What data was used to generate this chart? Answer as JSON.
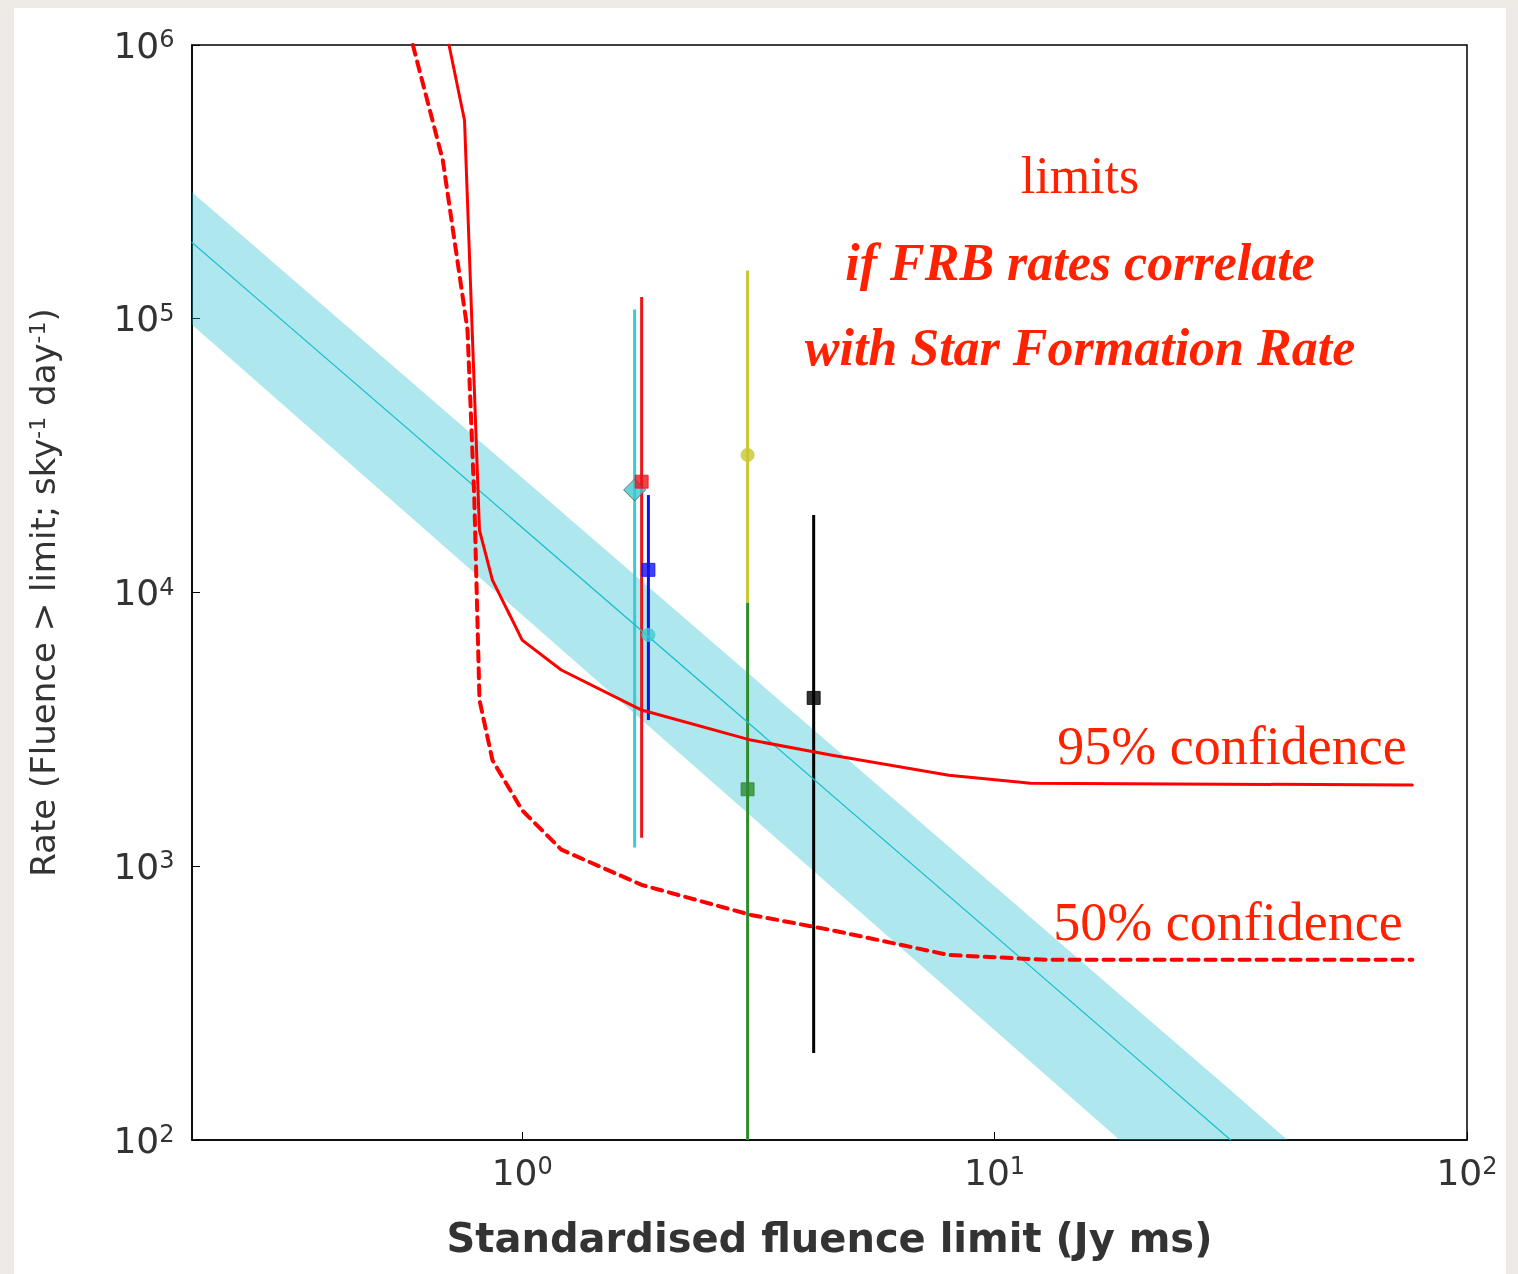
{
  "chart_data": {
    "type": "line",
    "xlabel": "Standardised fluence limit (Jy ms)",
    "ylabel": "Rate (Fluence > limit; sky$^{-1}$ day$^{-1}$)",
    "log": "xy",
    "xlim": [
      0.2,
      100
    ],
    "ylim": [
      100,
      1000000
    ],
    "xticks": [
      {
        "value": 1,
        "label": "10$^{0}$"
      },
      {
        "value": 10,
        "label": "10$^{1}$"
      },
      {
        "value": 100,
        "label": "10$^{2}$"
      }
    ],
    "yticks": [
      {
        "value": 100,
        "label": "10$^{2}$"
      },
      {
        "value": 1000,
        "label": "10$^{3}$"
      },
      {
        "value": 10000,
        "label": "10$^{4}$"
      },
      {
        "value": 100000,
        "label": "10$^{5}$"
      },
      {
        "value": 1000000,
        "label": "10$^{6}$"
      }
    ],
    "annotations": [
      "limits",
      "if FRB rates correlate",
      "with Star Formation Rate",
      "95% confidence",
      "50% confidence"
    ],
    "series": [
      {
        "color": "#17becf",
        "marker": "none",
        "line_style": "solid",
        "x": [
          0.2,
          18.4,
          31.6,
          41.7
        ],
        "values": [
          190000,
          225,
          100,
          null
        ],
        "lower": [
          95000,
          100,
          100,
          100
        ],
        "upper": [
          290000,
          340,
          152,
          100
        ]
      },
      {
        "type": "scatter",
        "color": "#3fc9cf",
        "marker": "diamond",
        "x": [
          1.73
        ],
        "values": [
          23700
        ],
        "errors": [
          [
            1170,
            108000
          ]
        ]
      },
      {
        "type": "scatter",
        "color": "#e8161b",
        "marker": "square",
        "x": [
          1.79
        ],
        "values": [
          25400
        ],
        "errors": [
          [
            1270,
            120000
          ]
        ]
      },
      {
        "type": "scatter",
        "color": "#1010f0",
        "marker": "square",
        "x": [
          1.85
        ],
        "values": [
          12100
        ],
        "errors": [
          [
            3420,
            22700
          ]
        ]
      },
      {
        "type": "scatter",
        "color": "#3fc9cf",
        "marker": "circle",
        "x": [
          1.85
        ],
        "values": [
          7000
        ]
      },
      {
        "type": "scatter",
        "color": "#c8c832",
        "marker": "circle",
        "x": [
          3.0
        ],
        "values": [
          31800
        ],
        "errors": [
          [
            9170,
            150000
          ]
        ]
      },
      {
        "type": "scatter",
        "color": "#2e8b2e",
        "marker": "square",
        "x": [
          3.0
        ],
        "values": [
          1910
        ],
        "errors": [
          [
            100,
            9170
          ]
        ]
      },
      {
        "type": "scatter",
        "color": "#000000",
        "marker": "square",
        "x": [
          4.14
        ],
        "values": [
          4120
        ],
        "errors": [
          [
            208,
            19200
          ]
        ]
      },
      {
        "color": "#ff0000",
        "marker": "none",
        "line_style": "solid",
        "x": [
          0.7,
          0.755,
          0.812,
          0.865,
          1.0,
          1.21,
          1.79,
          3.05,
          4.5,
          8.0,
          11.9,
          76.6
        ],
        "values": [
          1000000,
          530000,
          16900,
          11100,
          6700,
          5210,
          3720,
          2890,
          2550,
          2150,
          2010,
          1980
        ]
      },
      {
        "color": "#ff0000",
        "marker": "none",
        "line_style": "dashed",
        "x": [
          0.587,
          0.679,
          0.766,
          0.792,
          0.812,
          0.865,
          1.0,
          1.21,
          1.79,
          3.05,
          4.5,
          8.0,
          13.0,
          76.6
        ],
        "values": [
          1000000,
          380000,
          91000,
          21800,
          4050,
          2440,
          1600,
          1150,
          855,
          664,
          585,
          474,
          455,
          455
        ]
      }
    ]
  }
}
